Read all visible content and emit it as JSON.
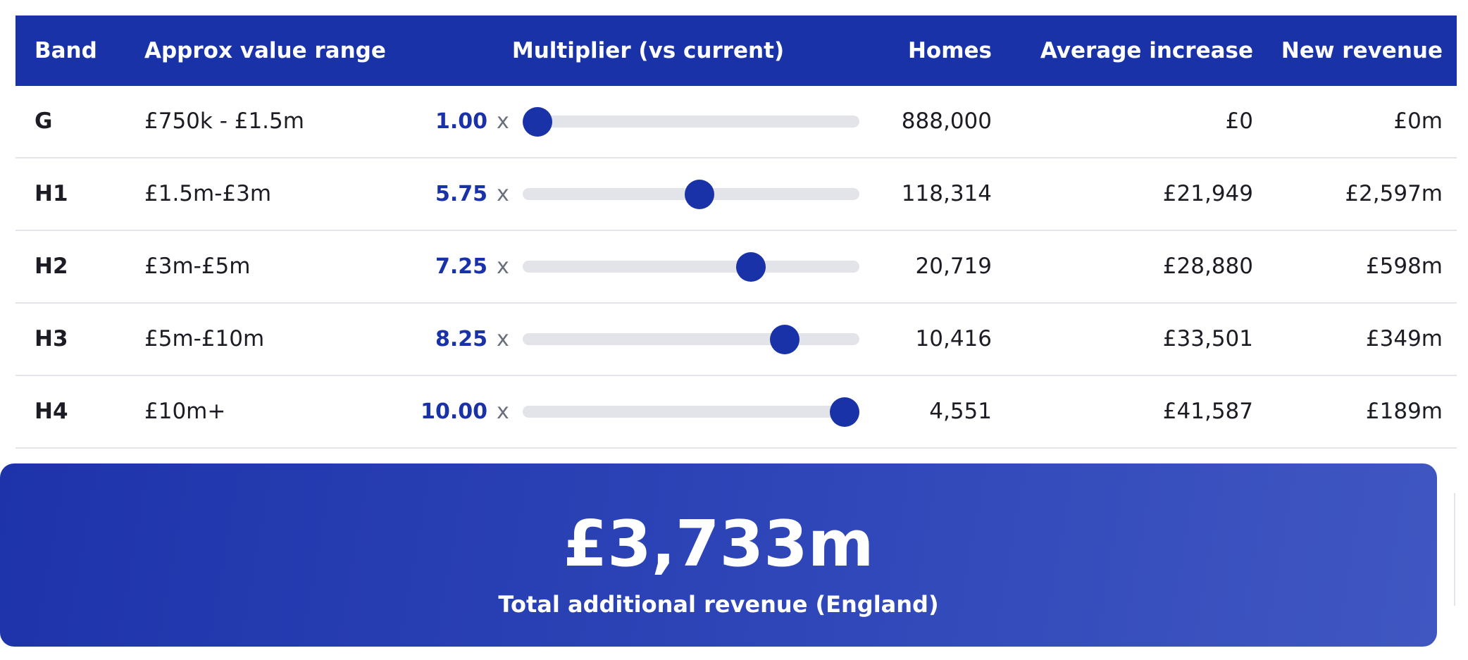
{
  "table": {
    "headers": {
      "band": "Band",
      "range": "Approx value range",
      "multiplier": "Multiplier (vs current)",
      "homes": "Homes",
      "avg_increase": "Average increase",
      "new_revenue": "New revenue"
    },
    "multiplier_suffix": "x",
    "slider_range": {
      "min": 1,
      "max": 10
    },
    "rows": [
      {
        "band": "G",
        "range": "£750k - £1.5m",
        "multiplier": "1.00",
        "multiplier_value": 1.0,
        "homes": "888,000",
        "avg_increase": "£0",
        "new_revenue": "£0m"
      },
      {
        "band": "H1",
        "range": "£1.5m-£3m",
        "multiplier": "5.75",
        "multiplier_value": 5.75,
        "homes": "118,314",
        "avg_increase": "£21,949",
        "new_revenue": "£2,597m"
      },
      {
        "band": "H2",
        "range": "£3m-£5m",
        "multiplier": "7.25",
        "multiplier_value": 7.25,
        "homes": "20,719",
        "avg_increase": "£28,880",
        "new_revenue": "£598m"
      },
      {
        "band": "H3",
        "range": "£5m-£10m",
        "multiplier": "8.25",
        "multiplier_value": 8.25,
        "homes": "10,416",
        "avg_increase": "£33,501",
        "new_revenue": "£349m"
      },
      {
        "band": "H4",
        "range": "£10m+",
        "multiplier": "10.00",
        "multiplier_value": 10.0,
        "homes": "4,551",
        "avg_increase": "£41,587",
        "new_revenue": "£189m"
      }
    ]
  },
  "total": {
    "value": "£3,733m",
    "label": "Total additional revenue (England)"
  },
  "colors": {
    "accent": "#1a32a8",
    "track": "#e2e4e9",
    "text": "#1c1c24"
  }
}
